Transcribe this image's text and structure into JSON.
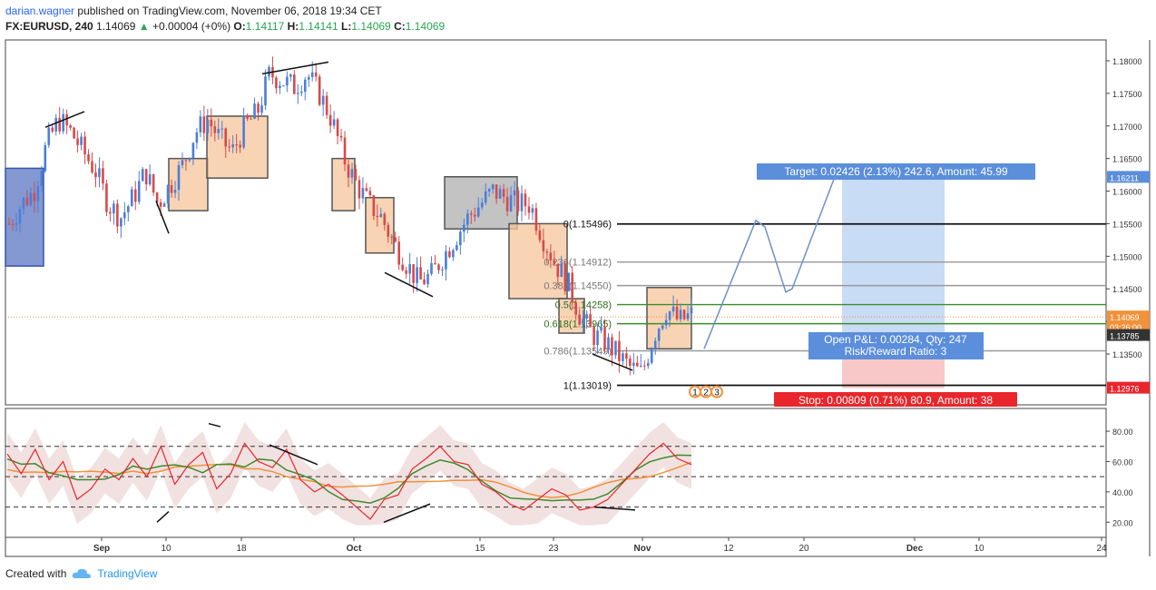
{
  "header": {
    "user": "darian.wagner",
    "published_text": "published on TradingView.com, November 06, 2018 19:34 CET",
    "symbol": "FX:EURUSD, 240",
    "last": "1.14069",
    "change": "+0.00004 (+0%)",
    "o_label": "O:",
    "o_value": "1.14117",
    "h_label": "H:",
    "h_value": "1.14141",
    "l_label": "L:",
    "l_value": "1.14069",
    "c_label": "C:",
    "c_value": "1.14069"
  },
  "footer": {
    "created_with": "Created with",
    "brand": "TradingView"
  },
  "colors": {
    "up": "#4a7fd8",
    "down": "#d84a4a",
    "fib_black": "#111111",
    "fib_gray": "#999999",
    "fib_green": "#3c8c2a",
    "target": "#5b8edb",
    "stop": "#e8262c",
    "rsi": "#e8262c"
  },
  "chart_data": [
    {
      "type": "candlestick",
      "title": "FX:EURUSD, 240",
      "ylim": [
        1.1272,
        1.1832
      ],
      "price_ticks": [
        "1.18000",
        "1.17500",
        "1.17000",
        "1.16500",
        "1.16000",
        "1.15500",
        "1.15000",
        "1.14500",
        "1.14000",
        "1.13500"
      ],
      "price_tick_values": [
        1.18,
        1.175,
        1.17,
        1.165,
        1.16,
        1.155,
        1.15,
        1.145,
        1.14,
        1.135
      ],
      "x_ticks": [
        "Sep",
        "10",
        "18",
        "Oct",
        "15",
        "23",
        "Nov",
        "12",
        "20",
        "Dec",
        "10",
        "24"
      ],
      "price_labels": [
        {
          "text": "1.16211",
          "value": 1.16211,
          "color": "#5b8edb"
        },
        {
          "text": "1.14069",
          "value": 1.14069,
          "color": "#f0923b"
        },
        {
          "text": "03:26:00",
          "value": 1.1392,
          "color": "#f0923b"
        },
        {
          "text": "1.13785",
          "value": 1.13785,
          "color": "#333333"
        },
        {
          "text": "1.12976",
          "value": 1.12976,
          "color": "#e8262c"
        }
      ],
      "close_path": [
        1.155,
        1.158,
        1.16,
        1.167,
        1.171,
        1.169,
        1.166,
        1.163,
        1.158,
        1.156,
        1.159,
        1.163,
        1.158,
        1.161,
        1.164,
        1.169,
        1.171,
        1.168,
        1.166,
        1.17,
        1.172,
        1.178,
        1.177,
        1.176,
        1.178,
        1.175,
        1.171,
        1.165,
        1.161,
        1.158,
        1.156,
        1.152,
        1.149,
        1.146,
        1.147,
        1.15,
        1.153,
        1.156,
        1.158,
        1.16,
        1.159,
        1.158,
        1.158,
        1.153,
        1.149,
        1.146,
        1.141,
        1.138,
        1.137,
        1.135,
        1.133,
        1.132,
        1.138,
        1.142,
        1.14,
        1.141
      ],
      "fib_levels": [
        {
          "label": "0(1.15496)",
          "value": 1.15496,
          "color": "black"
        },
        {
          "label": "0.236(1.14912)",
          "value": 1.14912,
          "color": "gray"
        },
        {
          "label": "0.382(1.14550)",
          "value": 1.1455,
          "color": "gray"
        },
        {
          "label": "0.5(1.14258)",
          "value": 1.14258,
          "color": "green"
        },
        {
          "label": "0.618(1.13965)",
          "value": 1.13965,
          "color": "green"
        },
        {
          "label": "0.786(1.13549)",
          "value": 1.13549,
          "color": "gray"
        },
        {
          "label": "1(1.13019)",
          "value": 1.13019,
          "color": "black"
        }
      ],
      "target_label": "Target: 0.02426 (2.13%) 242.6, Amount: 45.99",
      "pnl_label": "Open P&L: 0.00284, Qty: 247",
      "rr_label": "Risk/Reward Ratio: 3",
      "stop_label": "Stop: 0.00809 (0.71%) 80.9, Amount: 38",
      "wave_labels": [
        "1",
        "2",
        "3"
      ]
    },
    {
      "type": "line",
      "title": "",
      "ylim": [
        10,
        95
      ],
      "y_ticks": [
        "80.00",
        "60.00",
        "40.00",
        "20.00"
      ],
      "y_tick_values": [
        80,
        60,
        40,
        20
      ],
      "levels": [
        70,
        50,
        30
      ],
      "series": [
        {
          "values": [
            65,
            52,
            68,
            48,
            60,
            35,
            42,
            55,
            48,
            62,
            50,
            70,
            45,
            58,
            66,
            42,
            52,
            72,
            60,
            56,
            68,
            48,
            40,
            45,
            38,
            30,
            22,
            35,
            38,
            55,
            62,
            70,
            60,
            58,
            45,
            40,
            32,
            28,
            35,
            42,
            38,
            28,
            30,
            35,
            45,
            55,
            65,
            72,
            62,
            58
          ]
        }
      ]
    }
  ]
}
